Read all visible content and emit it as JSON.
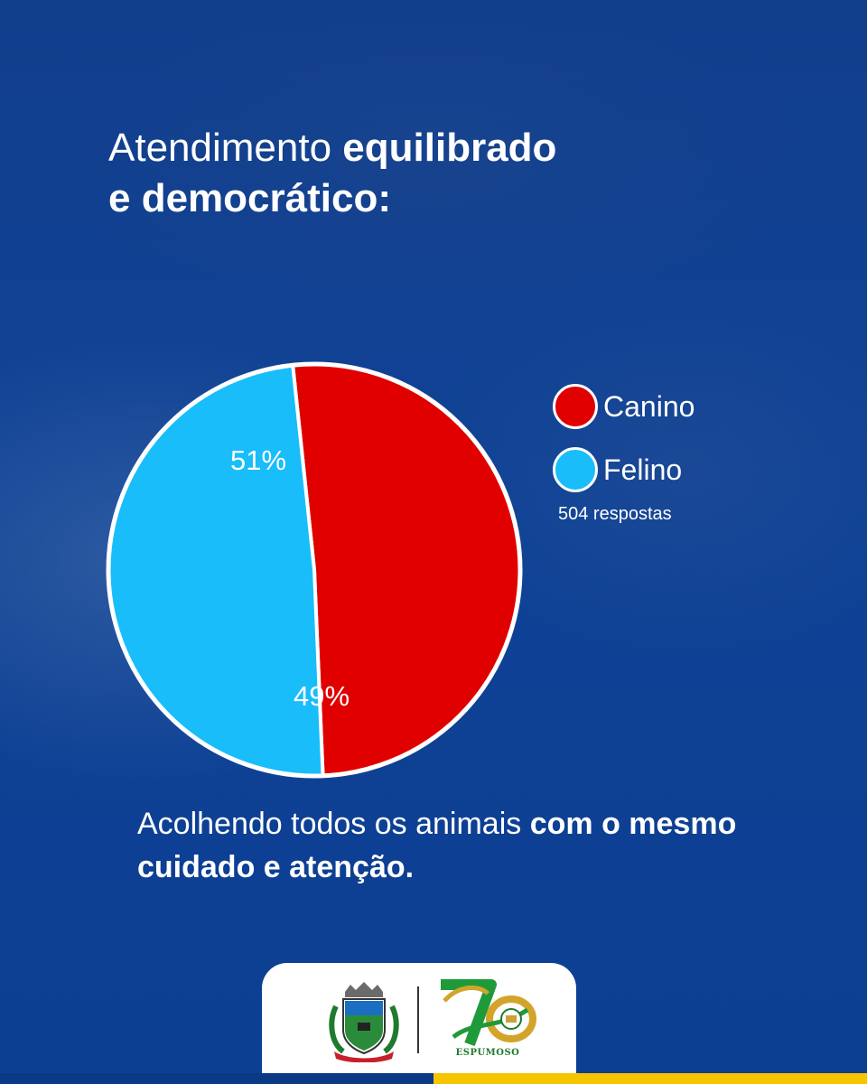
{
  "header": {
    "title_light": "Atendimento",
    "title_bold_1": "equilibrado",
    "title_bold_2": "e democrático:"
  },
  "chart_data": {
    "type": "pie",
    "categories": [
      "Canino",
      "Felino"
    ],
    "values": [
      51,
      49
    ],
    "value_labels": [
      "51%",
      "49%"
    ],
    "colors": [
      "#e00000",
      "#18bdfa"
    ],
    "legend_placement": "right",
    "note": "504 respostas"
  },
  "footer": {
    "text_regular": "Acolhendo todos os animais",
    "text_bold": "com o mesmo cuidado e atenção."
  },
  "logos": {
    "anniversary_text": "ESPUMOSO"
  },
  "colors": {
    "background": "#0e3f8f",
    "accent_yellow": "#f7c400"
  }
}
